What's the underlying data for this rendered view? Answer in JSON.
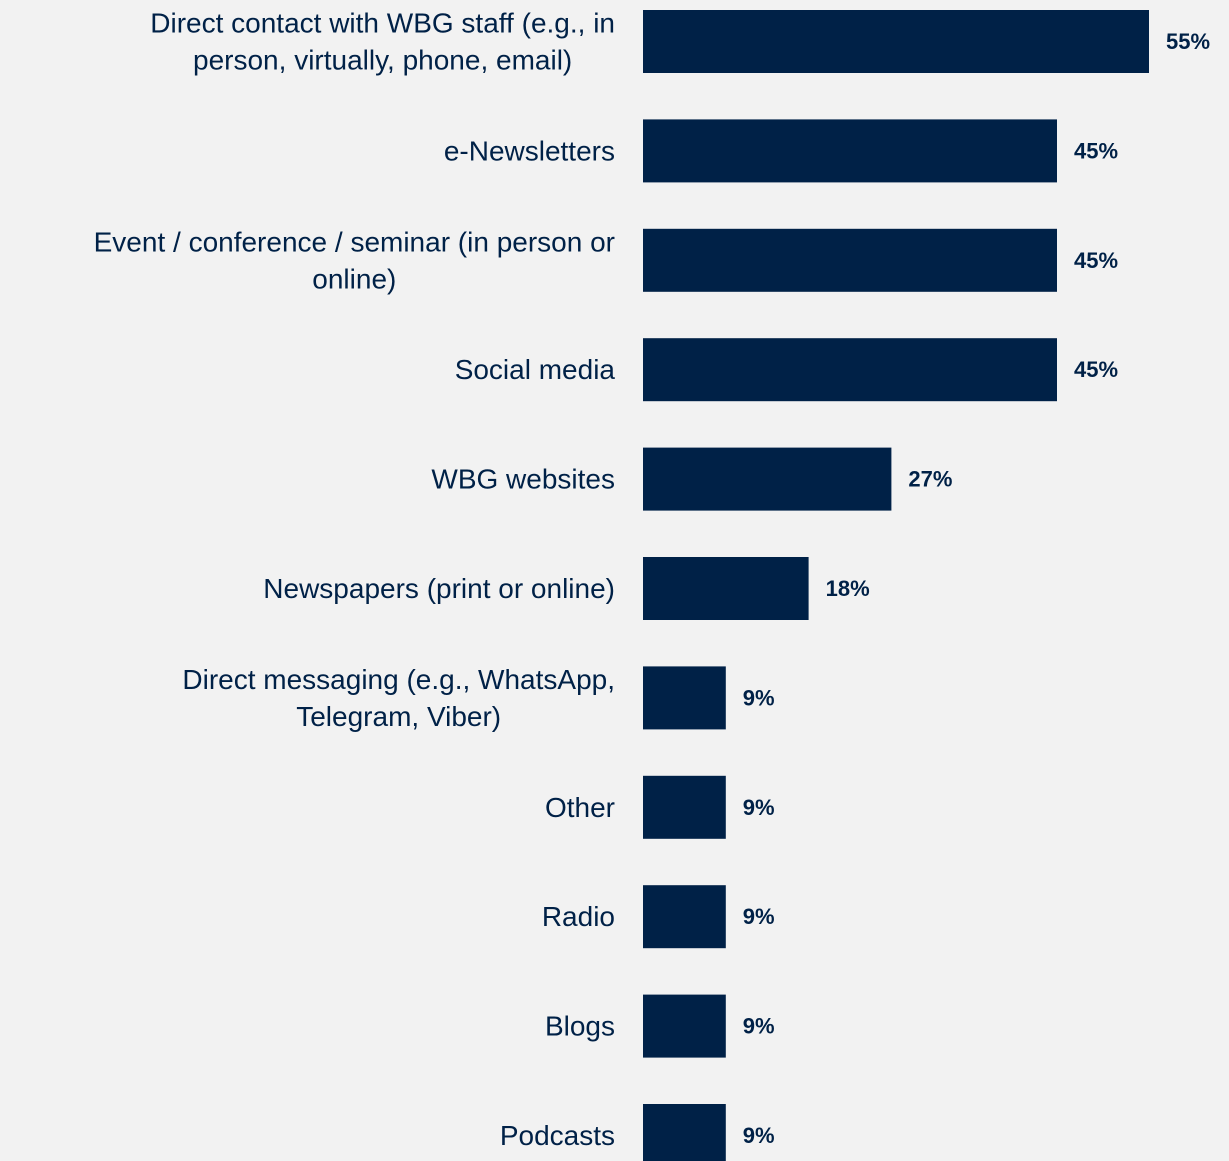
{
  "chart_data": {
    "type": "bar",
    "orientation": "horizontal",
    "categories": [
      [
        "Direct contact with WBG staff (e.g., in",
        "person, virtually, phone, email)"
      ],
      [
        "e-Newsletters"
      ],
      [
        "Event / conference / seminar (in person or",
        "online)"
      ],
      [
        "Social media"
      ],
      [
        "WBG websites"
      ],
      [
        "Newspapers (print or online)"
      ],
      [
        "Direct messaging (e.g., WhatsApp,",
        "Telegram, Viber)"
      ],
      [
        "Other"
      ],
      [
        "Radio"
      ],
      [
        "Blogs"
      ],
      [
        "Podcasts"
      ]
    ],
    "values": [
      55,
      45,
      45,
      45,
      27,
      18,
      9,
      9,
      9,
      9,
      9
    ],
    "value_labels": [
      "55%",
      "45%",
      "45%",
      "45%",
      "27%",
      "18%",
      "9%",
      "9%",
      "9%",
      "9%",
      "9%"
    ],
    "unit": "%",
    "bar_color": "#002147",
    "label_color": "#002147",
    "background": "#f2f2f2",
    "grid": false,
    "legend": "none",
    "x_axis_visible": false
  }
}
